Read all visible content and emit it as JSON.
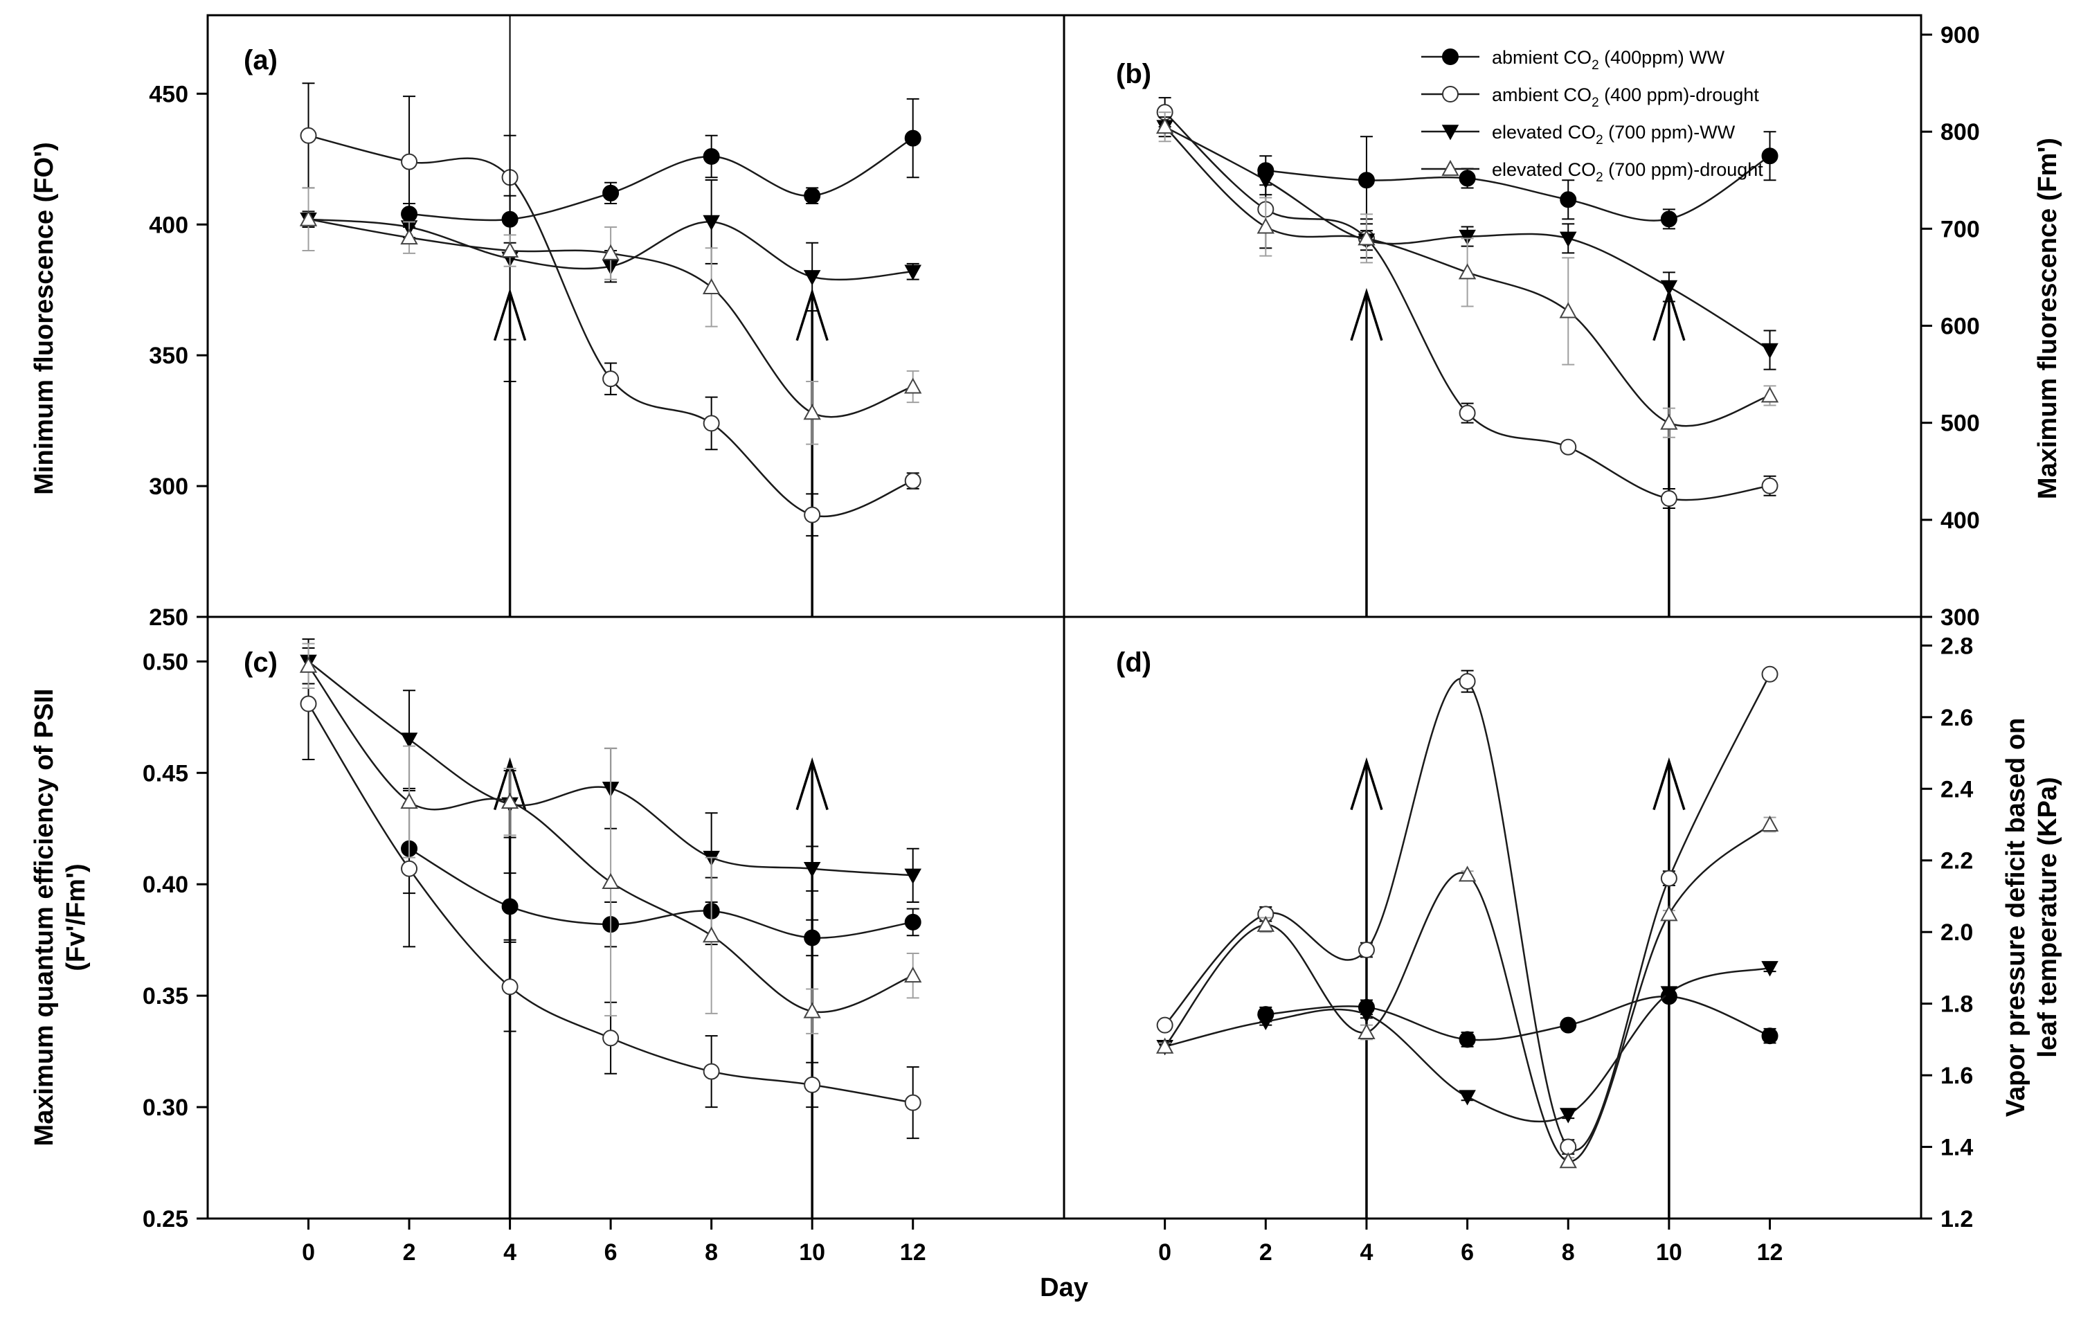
{
  "chart_data": {
    "type": "line",
    "x": [
      0,
      2,
      4,
      6,
      8,
      10,
      12
    ],
    "x_ticks": [
      "0",
      "2",
      "4",
      "6",
      "8",
      "10",
      "12"
    ],
    "xlabel": "Day",
    "xlim": [
      -2,
      15
    ],
    "drought_markers": [
      4,
      10
    ],
    "legend": {
      "placement": "top-right of panel (b)",
      "entries": [
        {
          "pre": "abmient CO",
          "sub": "2",
          "post": " (400ppm) WW",
          "marker": "filled-circle"
        },
        {
          "pre": "ambient CO",
          "sub": "2",
          "post": " (400 ppm)-drought",
          "marker": "open-circle"
        },
        {
          "pre": "elevated CO",
          "sub": "2",
          "post": " (700 ppm)-WW",
          "marker": "filled-triangle-down"
        },
        {
          "pre": "elevated CO",
          "sub": "2",
          "post": " (700 ppm)-drought",
          "marker": "open-triangle-up"
        }
      ]
    },
    "panels": [
      {
        "label": "(a)",
        "ylabel": "Minimum fluorescence (FO')",
        "ylim": [
          250,
          480
        ],
        "y_ticks": [
          250,
          300,
          350,
          400,
          450
        ],
        "y_axis_side": "left",
        "series": [
          {
            "values": [
              null,
              404,
              402,
              412,
              426,
              411,
              433
            ],
            "err": [
              null,
              4,
              9,
              4,
              8,
              3,
              15
            ]
          },
          {
            "values": [
              434,
              424,
              418,
              341,
              324,
              289,
              302
            ],
            "err": [
              20,
              25,
              62,
              6,
              10,
              8,
              3
            ]
          },
          {
            "values": [
              402,
              399,
              387,
              384,
              401,
              380,
              382
            ],
            "err": [
              3,
              4,
              47,
              6,
              16,
              13,
              3
            ]
          },
          {
            "values": [
              402,
              395,
              390,
              389,
              376,
              328,
              338
            ],
            "err": [
              12,
              6,
              6,
              10,
              15,
              12,
              6
            ]
          }
        ]
      },
      {
        "label": "(b)",
        "ylabel": "Maximum fluorescence (Fm')",
        "ylim": [
          300,
          920
        ],
        "y_ticks": [
          300,
          400,
          500,
          600,
          700,
          800,
          900
        ],
        "y_axis_side": "right",
        "series": [
          {
            "values": [
              null,
              760,
              750,
              752,
              730,
              710,
              775
            ],
            "err": [
              null,
              15,
              45,
              10,
              20,
              10,
              25
            ]
          },
          {
            "values": [
              820,
              720,
              690,
              510,
              475,
              422,
              435
            ],
            "err": [
              15,
              40,
              20,
              10,
              5,
              10,
              10
            ]
          },
          {
            "values": [
              805,
              750,
              688,
              692,
              690,
              640,
              575
            ],
            "err": [
              10,
              15,
              10,
              10,
              15,
              15,
              20
            ]
          },
          {
            "values": [
              805,
              702,
              690,
              655,
              615,
              500,
              528
            ],
            "err": [
              15,
              30,
              25,
              35,
              55,
              15,
              10
            ]
          }
        ]
      },
      {
        "label": "(c)",
        "ylabel": "Maximum quantum efficiency of PSII",
        "ylabel2": "(Fv'/Fm')",
        "ylim": [
          0.25,
          0.52
        ],
        "y_ticks": [
          "0.25",
          "0.30",
          "0.35",
          "0.40",
          "0.45",
          "0.50"
        ],
        "y_axis_side": "left",
        "series": [
          {
            "values": [
              null,
              0.416,
              0.39,
              0.382,
              0.388,
              0.376,
              0.383
            ],
            "err": [
              null,
              0.02,
              0.015,
              0.01,
              0.015,
              0.008,
              0.006
            ]
          },
          {
            "values": [
              0.481,
              0.407,
              0.354,
              0.331,
              0.316,
              0.31,
              0.302
            ],
            "err": [
              0.025,
              0.035,
              0.02,
              0.016,
              0.016,
              0.01,
              0.016
            ]
          },
          {
            "values": [
              0.5,
              0.465,
              0.436,
              0.443,
              0.412,
              0.407,
              0.404
            ],
            "err": [
              0.01,
              0.022,
              0.015,
              0.018,
              0.02,
              0.01,
              0.012
            ]
          },
          {
            "values": [
              0.498,
              0.437,
              0.437,
              0.401,
              0.377,
              0.343,
              0.359
            ],
            "err": [
              0.01,
              0.025,
              0.015,
              0.06,
              0.035,
              0.01,
              0.01
            ]
          }
        ]
      },
      {
        "label": "(d)",
        "ylabel": "Vapor pressure deficit based on",
        "ylabel2": "leaf temperature (KPa)",
        "ylim": [
          1.2,
          2.88
        ],
        "y_ticks": [
          "1.2",
          "1.4",
          "1.6",
          "1.8",
          "2.0",
          "2.2",
          "2.4",
          "2.6",
          "2.8"
        ],
        "y_axis_side": "right",
        "series": [
          {
            "values": [
              null,
              1.77,
              1.79,
              1.7,
              1.74,
              1.82,
              1.71
            ],
            "err": [
              null,
              0.02,
              0.02,
              0.02,
              0.01,
              0.01,
              0.02
            ]
          },
          {
            "values": [
              1.74,
              2.05,
              1.95,
              2.7,
              1.4,
              2.15,
              2.72
            ],
            "err": [
              0.01,
              0.02,
              0.02,
              0.03,
              0.02,
              0.02,
              0.01
            ]
          },
          {
            "values": [
              1.68,
              1.75,
              1.77,
              1.54,
              1.49,
              1.83,
              1.9
            ],
            "err": [
              0.01,
              0.01,
              0.01,
              0.01,
              0.01,
              0.01,
              0.01
            ]
          },
          {
            "values": [
              1.68,
              2.02,
              1.72,
              2.16,
              1.36,
              2.05,
              2.3
            ],
            "err": [
              0.01,
              0.02,
              0.02,
              0.01,
              0.01,
              0.01,
              0.02
            ]
          }
        ]
      }
    ]
  }
}
